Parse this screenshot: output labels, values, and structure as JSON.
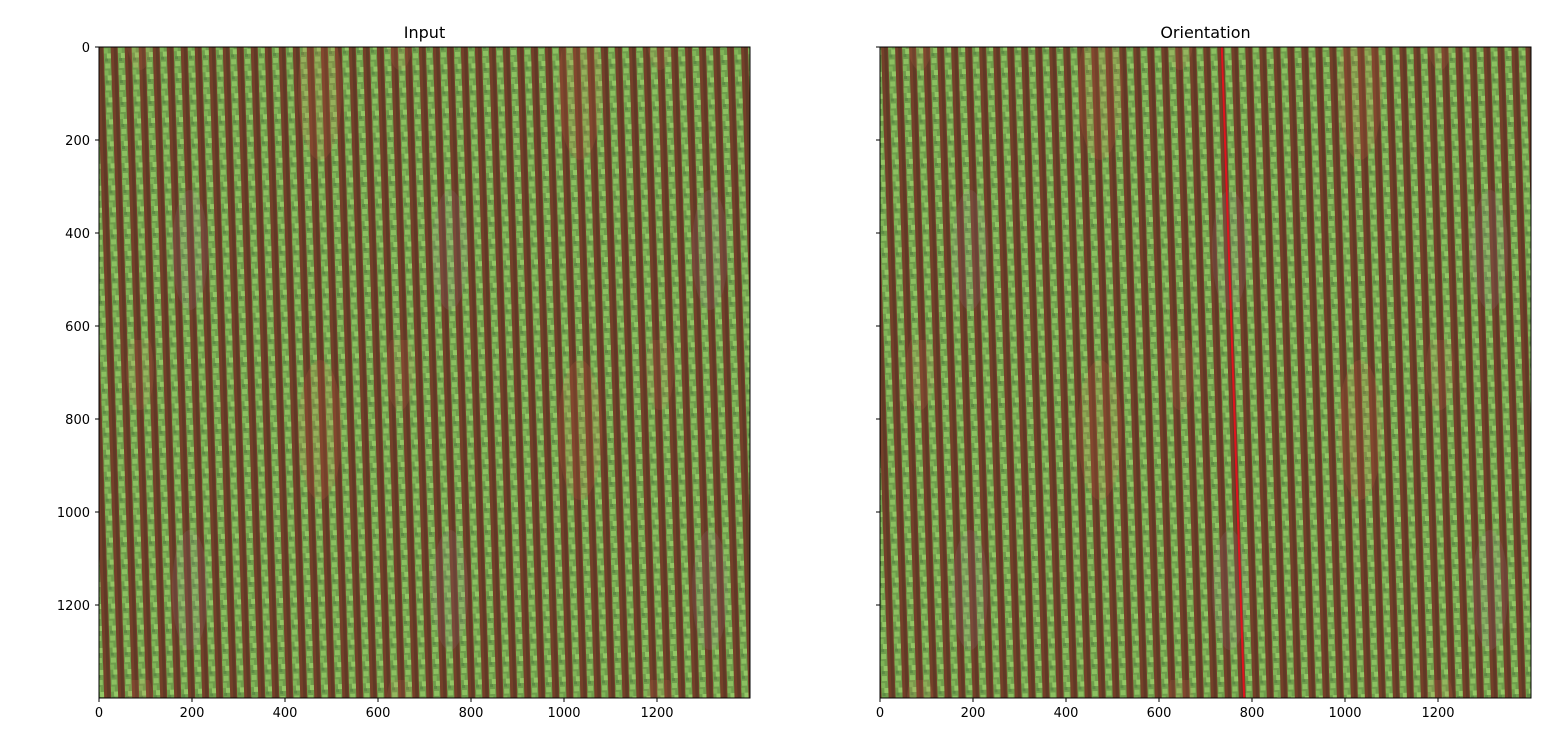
{
  "chart_data": [
    {
      "type": "heatmap",
      "title": "Input",
      "content": "aerial image of crop field",
      "xlim": [
        0,
        1400
      ],
      "ylim": [
        1400,
        0
      ],
      "xticks": [
        0,
        200,
        400,
        600,
        800,
        1000,
        1200
      ],
      "yticks": [
        0,
        200,
        400,
        600,
        800,
        1000,
        1200
      ],
      "show_y_tick_labels": true,
      "overlay_line": null
    },
    {
      "type": "heatmap",
      "title": "Orientation",
      "content": "aerial image of crop field with detected row orientation line",
      "xlim": [
        0,
        1400
      ],
      "ylim": [
        1400,
        0
      ],
      "xticks": [
        0,
        200,
        400,
        600,
        800,
        1000,
        1200
      ],
      "yticks": [
        0,
        200,
        400,
        600,
        800,
        1000,
        1200
      ],
      "show_y_tick_labels": false,
      "overlay_line": {
        "x": [
          735,
          783
        ],
        "y": [
          0,
          1400
        ],
        "color": "#e0141e"
      }
    }
  ],
  "colors": {
    "soil": "#7a3f2c",
    "soil_dark": "#5a3122",
    "row_green": "#76ab4f",
    "row_green_light": "#8fc062",
    "axis": "#000000"
  }
}
